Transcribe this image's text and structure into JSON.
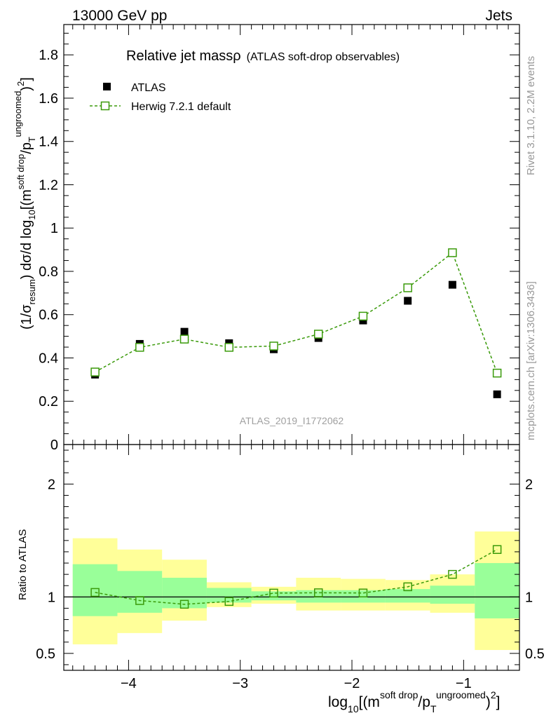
{
  "header": {
    "left": "13000 GeV pp",
    "right": "Jets",
    "side_rivet": "Rivet 3.1.10,  2.2M events",
    "side_mcplots": "mcplots.cern.ch [arXiv:1306.3436]"
  },
  "chart_data": [
    {
      "type": "scatter",
      "title": "Relative jet massρ",
      "subtitle": "(ATLAS soft-drop observables)",
      "watermark": "ATLAS_2019_I1772062",
      "ylabel": "(1/σresum) dσ/d log10[(m soft drop/pT ungroomed)2]",
      "ylabel_parts": {
        "a": "(1/σ",
        "b": "resum",
        "c": ") dσ/d log",
        "d": "10",
        "e": "[(m",
        "f": "soft drop",
        "g": "/p",
        "h": "T",
        "i": "ungroomed",
        "j": ")",
        "k": "2",
        "l": "]"
      },
      "xlim": [
        -4.58,
        -0.5
      ],
      "ylim": [
        0,
        1.94
      ],
      "yticks": [
        0,
        0.2,
        0.4,
        0.6,
        0.8,
        1,
        1.2,
        1.4,
        1.6,
        1.8
      ],
      "ytick_labels": [
        "0",
        "0.2",
        "0.4",
        "0.6",
        "0.8",
        "1",
        "1.2",
        "1.4",
        "1.6",
        "1.8"
      ],
      "legend": {
        "position": "top-left",
        "entries": [
          {
            "label": "ATLAS",
            "style": "black-square-marker"
          },
          {
            "label": "Herwig 7.2.1 default",
            "style": "green-dashed-open-square"
          }
        ]
      },
      "bins": [
        [
          -4.5,
          -4.1
        ],
        [
          -4.1,
          -3.7
        ],
        [
          -3.7,
          -3.3
        ],
        [
          -3.3,
          -2.9
        ],
        [
          -2.9,
          -2.5
        ],
        [
          -2.5,
          -2.1
        ],
        [
          -2.1,
          -1.7
        ],
        [
          -1.7,
          -1.3
        ],
        [
          -1.3,
          -0.9
        ],
        [
          -0.9,
          -0.5
        ]
      ],
      "x": [
        -4.3,
        -3.9,
        -3.5,
        -3.1,
        -2.7,
        -2.3,
        -1.9,
        -1.5,
        -1.1,
        -0.7
      ],
      "series": [
        {
          "name": "ATLAS",
          "color": "#000000",
          "values": [
            0.323,
            0.465,
            0.521,
            0.468,
            0.44,
            0.492,
            0.573,
            0.664,
            0.738,
            0.232
          ]
        },
        {
          "name": "Herwig 7.2.1 default",
          "color": "#3a9a0a",
          "values": [
            0.335,
            0.449,
            0.487,
            0.449,
            0.455,
            0.51,
            0.593,
            0.724,
            0.886,
            0.33
          ]
        }
      ]
    },
    {
      "type": "scatter",
      "ylabel": "Ratio to ATLAS",
      "xlabel_parts": {
        "a": "log",
        "b": "10",
        "c": "[(m",
        "d": "soft drop",
        "e": "/p",
        "f": "T",
        "g": "ungroomed",
        "h": ")",
        "i": "2",
        "j": "]"
      },
      "xlim": [
        -4.58,
        -0.5
      ],
      "ylim": [
        0.35,
        2.35
      ],
      "yticks": [
        0.5,
        1,
        2
      ],
      "ytick_labels": [
        "0.5",
        "1",
        "2"
      ],
      "xticks": [
        -4,
        -3,
        -2,
        -1
      ],
      "xtick_labels": [
        "−4",
        "−3",
        "−2",
        "−1"
      ],
      "reference_line": 1,
      "bands": {
        "inner_color": "#99ff99",
        "outer_color": "#ffff99",
        "inner": [
          [
            0.83,
            1.29
          ],
          [
            0.86,
            1.23
          ],
          [
            0.9,
            1.17
          ],
          [
            0.95,
            1.08
          ],
          [
            0.97,
            1.05
          ],
          [
            0.95,
            1.06
          ],
          [
            0.95,
            1.06
          ],
          [
            0.95,
            1.07
          ],
          [
            0.94,
            1.1
          ],
          [
            0.81,
            1.3
          ]
        ],
        "outer": [
          [
            0.58,
            1.52
          ],
          [
            0.68,
            1.42
          ],
          [
            0.79,
            1.33
          ],
          [
            0.91,
            1.13
          ],
          [
            0.94,
            1.09
          ],
          [
            0.88,
            1.17
          ],
          [
            0.88,
            1.16
          ],
          [
            0.88,
            1.15
          ],
          [
            0.86,
            1.2
          ],
          [
            0.53,
            1.58
          ]
        ]
      },
      "series": [
        {
          "name": "Herwig 7.2.1 default / ATLAS",
          "color": "#3a9a0a",
          "values": [
            1.04,
            0.968,
            0.935,
            0.96,
            1.034,
            1.037,
            1.035,
            1.09,
            1.2,
            1.42
          ]
        }
      ]
    }
  ]
}
